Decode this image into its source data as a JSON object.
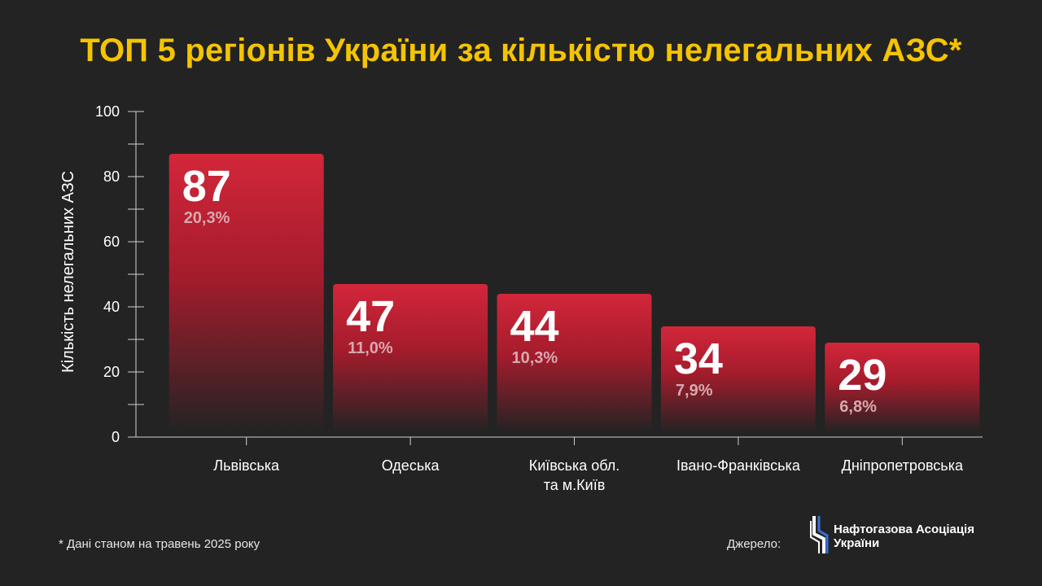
{
  "header": {
    "title": "ТОП 5 регіонів України за кількістю нелегальних АЗС*"
  },
  "chart_data": {
    "type": "bar",
    "title": "ТОП 5 регіонів України за кількістю нелегальних АЗС*",
    "ylabel": "Кількість нелегальних АЗС",
    "xlabel": "",
    "ylim": [
      0,
      100
    ],
    "yticks": [
      "0",
      "20",
      "40",
      "60",
      "80",
      "100"
    ],
    "ytick_values": [
      0,
      20,
      40,
      60,
      80,
      100
    ],
    "grid": false,
    "categories": [
      [
        "Львівська"
      ],
      [
        "Одеська"
      ],
      [
        "Київська обл.",
        "та м.Київ"
      ],
      [
        "Івано-Франківська"
      ],
      [
        "Дніпропетровська"
      ]
    ],
    "values": [
      87,
      47,
      44,
      34,
      29
    ],
    "value_labels": [
      "87",
      "47",
      "44",
      "34",
      "29"
    ],
    "percent_labels": [
      "20,3%",
      "11,0%",
      "10,3%",
      "7,9%",
      "6,8%"
    ],
    "bar_color_top": "#d3263a",
    "bar_color_bottom": "#232323"
  },
  "footer": {
    "note": "* Дані станом на травень 2025 року",
    "source_label": "Джерело:",
    "logo_lines": [
      "Нафтогазова Асоціація",
      "України"
    ]
  },
  "colors": {
    "background": "#232323",
    "title": "#f5c400",
    "axis": "#cfcfcf",
    "percent_text": "#d7a8ae"
  }
}
